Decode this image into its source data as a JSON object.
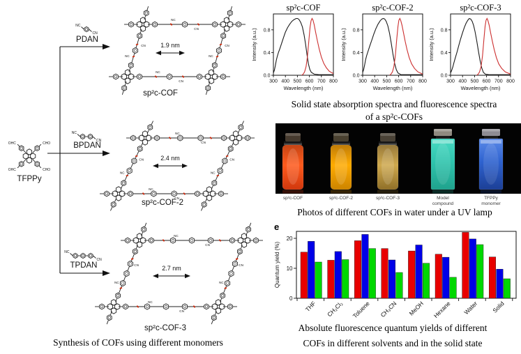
{
  "synthesis": {
    "tfppy_label": "TFPPy",
    "arm_labels": [
      "OHC",
      "CHO",
      "OHC",
      "CHO"
    ],
    "nitrile_left": "NC",
    "nitrile_right": "CN",
    "monomers": [
      {
        "name": "PDAN",
        "rings": 1
      },
      {
        "name": "BPDAN",
        "rings": 2
      },
      {
        "name": "TPDAN",
        "rings": 3
      }
    ],
    "cofs": [
      {
        "name": "sp²c-COF",
        "pore_size": "1.9 nm"
      },
      {
        "name": "sp²c-COF-2",
        "pore_size": "2.4 nm"
      },
      {
        "name": "sp²c-COF-3",
        "pore_size": "2.7 nm"
      }
    ],
    "caption": "Synthesis of COFs using different monomers"
  },
  "spectra": {
    "caption_line1": "Solid state absorption spectra and fluorescence spectra",
    "caption_line2": "of a sp²c-COFs"
  },
  "photo": {
    "caption": "Photos of different COFs in water under a UV lamp",
    "vials": [
      {
        "label_line1": "sp²c-COF",
        "label_line2": "",
        "shape": "round",
        "color_top": "#c44414",
        "color_mid": "#ff5a1c",
        "color_bottom": "#d0380e",
        "cap_color": "#463a2e"
      },
      {
        "label_line1": "sp²c-COF-2",
        "label_line2": "",
        "shape": "round",
        "color_top": "#c07c08",
        "color_mid": "#ffab00",
        "color_bottom": "#cc8400",
        "cap_color": "#49402f"
      },
      {
        "label_line1": "sp²c-COF-3",
        "label_line2": "",
        "shape": "round",
        "color_top": "#97793a",
        "color_mid": "#cfa94e",
        "color_bottom": "#8f6f28",
        "cap_color": "#4a4236"
      },
      {
        "label_line1": "Model",
        "label_line2": "compound",
        "shape": "square",
        "color_top": "#49d9c3",
        "color_mid": "#2fc4ad",
        "color_bottom": "#1fa28d",
        "cap_color": "#8f8a80"
      },
      {
        "label_line1": "TFPPy",
        "label_line2": "monomer",
        "shape": "square",
        "color_top": "#5b8ae8",
        "color_mid": "#2e62cf",
        "color_bottom": "#1c3f96",
        "cap_color": "#8e8c94"
      }
    ]
  },
  "barchart": {
    "panel_label": "e",
    "caption_line1": "Absolute fluorescence quantum yields of different",
    "caption_line2": "COFs in different solvents and in the solid state"
  },
  "chart_data": [
    {
      "type": "line",
      "title": "sp²c-COF",
      "xlabel": "Wavelength (nm)",
      "ylabel": "Intensity (a.u.)",
      "xlim": [
        300,
        800
      ],
      "ylim": [
        0,
        1.08
      ],
      "xticks": [
        300,
        400,
        500,
        600,
        700,
        800
      ],
      "yticks": [
        "0.0",
        "0.4",
        "0.8"
      ],
      "grid": false,
      "series": [
        {
          "name": "absorption",
          "color": "#1a1a1a",
          "x": [
            300,
            308,
            316,
            324,
            332,
            342,
            354,
            368,
            384,
            400,
            418,
            436,
            454,
            472,
            490,
            502,
            514,
            528,
            542,
            556,
            568,
            580,
            592,
            604,
            616,
            640,
            680,
            740,
            800
          ],
          "y": [
            0.04,
            0.09,
            0.17,
            0.26,
            0.33,
            0.4,
            0.47,
            0.56,
            0.66,
            0.76,
            0.84,
            0.9,
            0.95,
            0.98,
            1.0,
            1.0,
            0.98,
            0.93,
            0.85,
            0.71,
            0.55,
            0.36,
            0.2,
            0.1,
            0.05,
            0.02,
            0.01,
            0.01,
            0.01
          ]
        },
        {
          "name": "fluorescence",
          "color": "#cc2f2f",
          "x": [
            536,
            548,
            560,
            572,
            584,
            596,
            606,
            614,
            622,
            630,
            640,
            652,
            666,
            682,
            700,
            720,
            742,
            766,
            800
          ],
          "y": [
            0.0,
            0.02,
            0.06,
            0.15,
            0.33,
            0.62,
            0.85,
            0.96,
            1.0,
            0.97,
            0.89,
            0.76,
            0.61,
            0.46,
            0.32,
            0.21,
            0.13,
            0.07,
            0.03
          ]
        }
      ]
    },
    {
      "type": "line",
      "title": "sp²c-COF-2",
      "xlabel": "Wavelength (nm)",
      "ylabel": "Intensity (a.u.)",
      "xlim": [
        300,
        800
      ],
      "ylim": [
        0,
        1.08
      ],
      "xticks": [
        300,
        400,
        500,
        600,
        700,
        800
      ],
      "yticks": [
        "0.0",
        "0.4",
        "0.8"
      ],
      "grid": false,
      "series": [
        {
          "name": "absorption",
          "color": "#1a1a1a",
          "x": [
            300,
            308,
            316,
            324,
            334,
            346,
            360,
            376,
            392,
            410,
            428,
            446,
            460,
            472,
            484,
            496,
            510,
            524,
            538,
            552,
            566,
            580,
            594,
            620,
            660,
            720,
            800
          ],
          "y": [
            0.05,
            0.1,
            0.18,
            0.27,
            0.35,
            0.43,
            0.52,
            0.62,
            0.72,
            0.82,
            0.9,
            0.96,
            0.99,
            1.0,
            0.99,
            0.95,
            0.87,
            0.74,
            0.57,
            0.38,
            0.21,
            0.1,
            0.04,
            0.01,
            0.01,
            0.01,
            0.01
          ]
        },
        {
          "name": "fluorescence",
          "color": "#cc2f2f",
          "x": [
            524,
            536,
            548,
            560,
            572,
            584,
            594,
            602,
            610,
            618,
            628,
            640,
            654,
            670,
            688,
            708,
            732,
            760,
            800
          ],
          "y": [
            0.0,
            0.02,
            0.06,
            0.15,
            0.34,
            0.63,
            0.86,
            0.97,
            1.0,
            0.96,
            0.88,
            0.75,
            0.6,
            0.45,
            0.31,
            0.2,
            0.12,
            0.06,
            0.02
          ]
        }
      ]
    },
    {
      "type": "line",
      "title": "sp²c-COF-3",
      "xlabel": "Wavelength (nm)",
      "ylabel": "Intensity (a.u.)",
      "xlim": [
        300,
        800
      ],
      "ylim": [
        0,
        1.08
      ],
      "xticks": [
        300,
        400,
        500,
        600,
        700,
        800
      ],
      "yticks": [
        "0.0",
        "0.4",
        "0.8"
      ],
      "grid": false,
      "series": [
        {
          "name": "absorption",
          "color": "#1a1a1a",
          "x": [
            300,
            308,
            318,
            328,
            340,
            354,
            368,
            384,
            400,
            416,
            430,
            444,
            456,
            468,
            480,
            492,
            504,
            518,
            532,
            546,
            560,
            574,
            590,
            620,
            680,
            800
          ],
          "y": [
            0.04,
            0.08,
            0.14,
            0.22,
            0.31,
            0.41,
            0.52,
            0.64,
            0.75,
            0.85,
            0.92,
            0.97,
            1.0,
            0.99,
            0.95,
            0.88,
            0.77,
            0.61,
            0.43,
            0.26,
            0.13,
            0.05,
            0.02,
            0.01,
            0.01,
            0.01
          ]
        },
        {
          "name": "fluorescence",
          "color": "#cc2f2f",
          "x": [
            518,
            530,
            542,
            554,
            566,
            578,
            588,
            596,
            604,
            612,
            622,
            634,
            648,
            664,
            682,
            702,
            726,
            756,
            800
          ],
          "y": [
            0.0,
            0.02,
            0.06,
            0.15,
            0.34,
            0.63,
            0.86,
            0.97,
            1.0,
            0.96,
            0.88,
            0.75,
            0.6,
            0.45,
            0.31,
            0.2,
            0.12,
            0.06,
            0.02
          ]
        }
      ]
    },
    {
      "type": "bar",
      "panel_label": "e",
      "ylabel": "Quantum yield (%)",
      "categories": [
        "THF",
        "CH₂Cl₂",
        "Toluene",
        "CH₃CN",
        "MeOH",
        "Hexane",
        "Water",
        "Solid"
      ],
      "yticks": [
        0,
        10,
        20
      ],
      "ylim": [
        0,
        22.3
      ],
      "grid": false,
      "legend": "none",
      "series": [
        {
          "name": "red",
          "color": "#e80000",
          "values": [
            15.4,
            12.7,
            19.2,
            16.6,
            15.8,
            14.7,
            22.0,
            13.8
          ]
        },
        {
          "name": "blue",
          "color": "#0000e8",
          "values": [
            19.0,
            15.6,
            21.3,
            12.8,
            17.8,
            13.7,
            19.8,
            9.7
          ]
        },
        {
          "name": "green",
          "color": "#00d800",
          "values": [
            12.1,
            12.9,
            16.6,
            8.6,
            11.7,
            7.0,
            17.9,
            6.5
          ]
        }
      ]
    }
  ]
}
